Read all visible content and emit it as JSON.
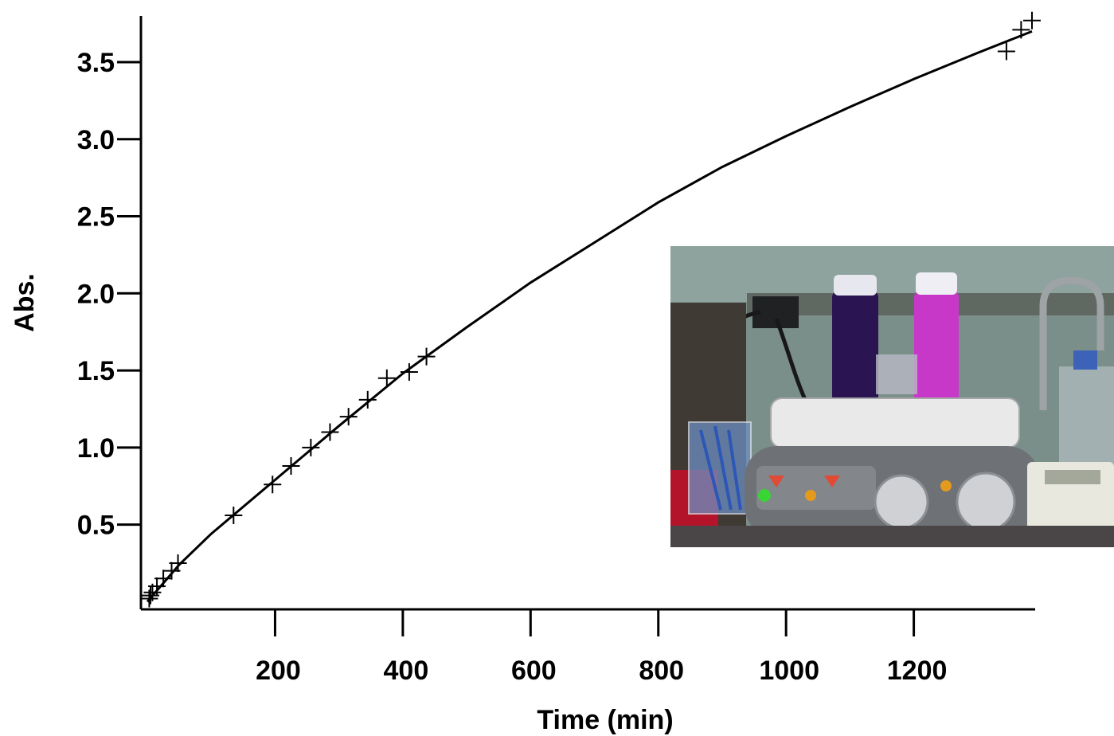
{
  "chart_data": {
    "type": "scatter",
    "title": "",
    "xlabel": "Time (min)",
    "ylabel": "Abs.",
    "xlim": [
      -10,
      1390
    ],
    "ylim": [
      -0.05,
      3.8
    ],
    "x_ticks": [
      200,
      400,
      600,
      800,
      1000,
      1200
    ],
    "x_tick_labels": [
      "200",
      "400",
      "600",
      "800",
      "1000",
      "1200"
    ],
    "y_ticks": [
      0.5,
      1.0,
      1.5,
      2.0,
      2.5,
      3.0,
      3.5
    ],
    "y_tick_labels": [
      "0.5",
      "1.0",
      "1.5",
      "2.0",
      "2.5",
      "3.0",
      "3.5"
    ],
    "grid": false,
    "legend": "none",
    "series": [
      {
        "kind": "points",
        "marker": "plus",
        "x": [
          3,
          5,
          8,
          15,
          25,
          38,
          48,
          135,
          196,
          225,
          256,
          286,
          315,
          345,
          375,
          410,
          437,
          1345,
          1368,
          1385
        ],
        "y": [
          0.02,
          0.04,
          0.06,
          0.1,
          0.15,
          0.2,
          0.25,
          0.56,
          0.76,
          0.88,
          1.0,
          1.1,
          1.2,
          1.31,
          1.45,
          1.49,
          1.59,
          3.57,
          3.71,
          3.77
        ]
      },
      {
        "kind": "fit-line",
        "x": [
          0,
          25,
          50,
          100,
          200,
          300,
          400,
          500,
          600,
          700,
          800,
          900,
          1000,
          1100,
          1200,
          1300,
          1385
        ],
        "y": [
          0.0,
          0.12,
          0.24,
          0.44,
          0.79,
          1.14,
          1.48,
          1.78,
          2.07,
          2.33,
          2.59,
          2.82,
          3.02,
          3.21,
          3.39,
          3.56,
          3.7
        ]
      }
    ],
    "colors": {
      "axis": "#000000",
      "line": "#000000",
      "marker": "#000000"
    }
  },
  "inset_photo": {
    "subject": "magnetic-stirrer-with-two-purple-vials",
    "colors": {
      "wall": "#7b8f8a",
      "shelf": "#5f6962",
      "vial_dark": "#2a1552",
      "vial_light": "#c838c8",
      "stirrer_body": "#6e7277",
      "stirrer_top": "#e9e9ea",
      "knob": "#cfd1d4",
      "bench": "#4a4648",
      "beaker_tint": "#6d8fc2"
    }
  }
}
